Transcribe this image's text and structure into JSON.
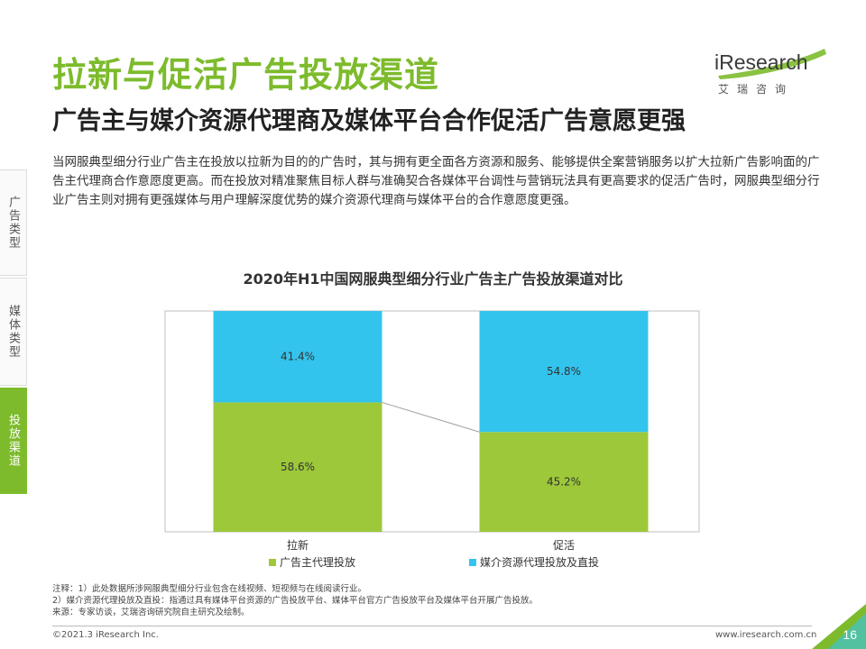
{
  "header": {
    "title": "拉新与促活广告投放渠道",
    "subtitle": "广告主与媒介资源代理商及媒体平台合作促活广告意愿更强"
  },
  "logo": {
    "brand": "iResearch",
    "cn": "艾瑞咨询"
  },
  "body": {
    "paragraph": "当网服典型细分行业广告主在投放以拉新为目的的广告时，其与拥有更全面各方资源和服务、能够提供全案营销服务以扩大拉新广告影响面的广告主代理商合作意愿度更高。而在投放对精准聚焦目标人群与准确契合各媒体平台调性与营销玩法具有更高要求的促活广告时，网服典型细分行业广告主则对拥有更强媒体与用户理解深度优势的媒介资源代理商与媒体平台的合作意愿度更强。"
  },
  "sidebar": {
    "items": [
      {
        "label": "广告类型",
        "active": false
      },
      {
        "label": "媒体类型",
        "active": false
      },
      {
        "label": "投放渠道",
        "active": true
      }
    ]
  },
  "chart_data": {
    "type": "bar",
    "stacked": true,
    "title": "2020年H1中国网服典型细分行业广告主广告投放渠道对比",
    "categories": [
      "拉新",
      "促活"
    ],
    "series": [
      {
        "name": "广告主代理投放",
        "values": [
          58.6,
          45.2
        ],
        "labels": [
          "58.6%",
          "45.2%"
        ],
        "color": "#9cc83a"
      },
      {
        "name": "媒介资源代理投放及直投",
        "values": [
          41.4,
          54.8
        ],
        "labels": [
          "41.4%",
          "54.8%"
        ],
        "color": "#33c4ee"
      }
    ],
    "ylim": [
      0,
      100
    ],
    "grid": false,
    "legend": "bottom"
  },
  "notes": {
    "line1": "注释：1）此处数据所涉网服典型细分行业包含在线视频、短视频与在线阅读行业。",
    "line2": "2）媒介资源代理投放及直投：指通过具有媒体平台资源的广告投放平台、媒体平台官方广告投放平台及媒体平台开展广告投放。",
    "line3": "来源：专家访谈，艾瑞咨询研究院自主研究及绘制。"
  },
  "footer": {
    "copyright": "©2021.3 iResearch Inc.",
    "url": "www.iresearch.com.cn",
    "page": "16"
  },
  "colors": {
    "accent": "#7dbb2c",
    "green_series": "#9cc83a",
    "blue_series": "#33c4ee"
  }
}
